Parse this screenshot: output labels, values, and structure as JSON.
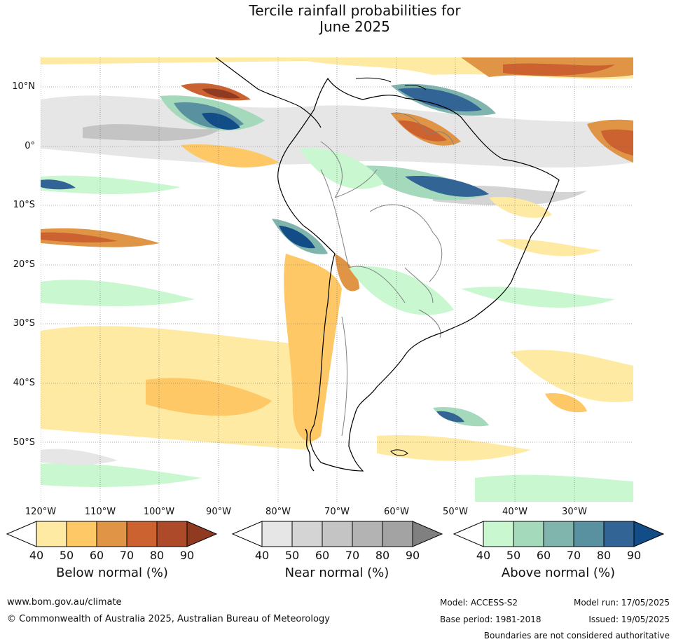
{
  "title": {
    "line1": "Tercile rainfall probabilities for",
    "line2": "June 2025"
  },
  "map": {
    "latitude_labels": [
      "10°N",
      "0°",
      "10°S",
      "20°S",
      "30°S",
      "40°S",
      "50°S"
    ],
    "longitude_labels": [
      "120°W",
      "110°W",
      "100°W",
      "90°W",
      "80°W",
      "70°W",
      "60°W",
      "50°W",
      "40°W",
      "30°W"
    ],
    "extent": {
      "lon_min": -120,
      "lon_max": -20,
      "lat_min": -60,
      "lat_max": 15
    },
    "colors": {
      "land_outline": "#000000",
      "border": "#808080",
      "graticule": "#666666"
    }
  },
  "legends": [
    {
      "id": "below",
      "title": "Below normal (%)",
      "ticks": [
        "40",
        "50",
        "60",
        "70",
        "80",
        "90"
      ],
      "colors": [
        "#ffeaa3",
        "#fdc865",
        "#e09446",
        "#cb6230",
        "#ad4a29",
        "#903a22"
      ]
    },
    {
      "id": "near",
      "title": "Near normal (%)",
      "ticks": [
        "40",
        "50",
        "60",
        "70",
        "80",
        "90"
      ],
      "colors": [
        "#e6e6e6",
        "#d4d4d4",
        "#c4c4c4",
        "#b3b3b3",
        "#a3a3a3",
        "#808080"
      ]
    },
    {
      "id": "above",
      "title": "Above normal (%)",
      "ticks": [
        "40",
        "50",
        "60",
        "70",
        "80",
        "90"
      ],
      "colors": [
        "#c8f7d0",
        "#a4d9bc",
        "#80b5ad",
        "#5a91a0",
        "#326496",
        "#134d87"
      ]
    }
  ],
  "footer": {
    "website": "www.bom.gov.au/climate",
    "copyright": "© Commonwealth of Australia 2025, Australian Bureau of Meteorology",
    "model": "Model: ACCESS-S2",
    "base_period": "Base period: 1981-2018",
    "model_run": "Model run: 17/05/2025",
    "issued": "Issued: 19/05/2025",
    "boundaries_note": "Boundaries are not considered authoritative"
  }
}
